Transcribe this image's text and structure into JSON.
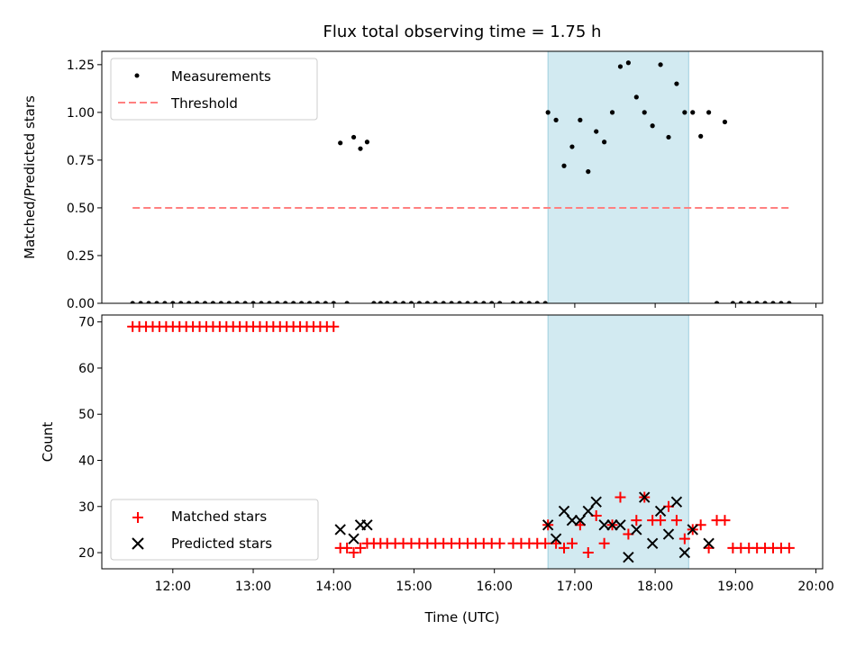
{
  "chart_data": {
    "type": "scatter",
    "title": "Flux total observing time = 1.75 h",
    "xlabel": "Time (UTC)",
    "x_tick_labels": [
      "12:00",
      "13:00",
      "14:00",
      "15:00",
      "16:00",
      "17:00",
      "18:00",
      "19:00",
      "20:00"
    ],
    "xlim": [
      "11:07",
      "20:05"
    ],
    "highlight_span": {
      "start": "16:40",
      "end": "18:25",
      "color": "#add8e6"
    },
    "panels": [
      {
        "ylabel": "Matched/Predicted stars",
        "ylim": [
          0,
          1.32
        ],
        "y_tick_labels": [
          "0.00",
          "0.25",
          "0.50",
          "0.75",
          "1.00",
          "1.25"
        ],
        "y_ticks": [
          0,
          0.25,
          0.5,
          0.75,
          1.0,
          1.25
        ],
        "legend": {
          "placement": "top-left",
          "entries": [
            "Measurements",
            "Threshold"
          ]
        },
        "series": [
          {
            "name": "Measurements",
            "marker": "dot",
            "color": "#000000",
            "x": [
              "11:30",
              "11:36",
              "11:42",
              "11:48",
              "11:54",
              "12:00",
              "12:06",
              "12:12",
              "12:18",
              "12:24",
              "12:30",
              "12:36",
              "12:42",
              "12:48",
              "12:54",
              "13:00",
              "13:06",
              "13:12",
              "13:18",
              "13:24",
              "13:30",
              "13:36",
              "13:42",
              "13:48",
              "13:54",
              "14:00",
              "14:05",
              "14:10",
              "14:15",
              "14:20",
              "14:25",
              "14:30",
              "14:35",
              "14:40",
              "14:46",
              "14:52",
              "14:58",
              "15:04",
              "15:10",
              "15:16",
              "15:22",
              "15:28",
              "15:34",
              "15:40",
              "15:46",
              "15:52",
              "15:58",
              "16:04",
              "16:14",
              "16:20",
              "16:26",
              "16:32",
              "16:38",
              "16:40",
              "16:46",
              "16:52",
              "16:58",
              "17:04",
              "17:10",
              "17:16",
              "17:22",
              "17:28",
              "17:34",
              "17:40",
              "17:46",
              "17:52",
              "17:58",
              "18:04",
              "18:10",
              "18:16",
              "18:22",
              "18:28",
              "18:34",
              "18:40",
              "18:46",
              "18:52",
              "18:58",
              "19:04",
              "19:10",
              "19:16",
              "19:22",
              "19:28",
              "19:34",
              "19:40"
            ],
            "y": [
              0,
              0,
              0,
              0,
              0,
              0,
              0,
              0,
              0,
              0,
              0,
              0,
              0,
              0,
              0,
              0,
              0,
              0,
              0,
              0,
              0,
              0,
              0,
              0,
              0,
              0,
              0.84,
              0,
              0.87,
              0.81,
              0.845,
              0,
              0,
              0,
              0,
              0,
              0,
              0,
              0,
              0,
              0,
              0,
              0,
              0,
              0,
              0,
              0,
              0,
              0,
              0,
              0,
              0,
              0,
              1.0,
              0.96,
              0.72,
              0.82,
              0.96,
              0.69,
              0.9,
              0.845,
              1.0,
              1.24,
              1.26,
              1.08,
              1.0,
              0.93,
              1.25,
              0.87,
              1.15,
              1.0,
              1.0,
              0.875,
              1.0,
              0,
              0.95,
              0,
              0,
              0,
              0,
              0,
              0,
              0,
              0
            ]
          },
          {
            "name": "Threshold",
            "marker": "dashed-line",
            "color": "#ff8080",
            "x": [
              "11:30",
              "19:40"
            ],
            "y": [
              0.5,
              0.5
            ]
          }
        ]
      },
      {
        "ylabel": "Count",
        "ylim": [
          16.5,
          71.5
        ],
        "y_tick_labels": [
          "20",
          "30",
          "40",
          "50",
          "60",
          "70"
        ],
        "y_ticks": [
          20,
          30,
          40,
          50,
          60,
          70
        ],
        "legend": {
          "placement": "bottom-left",
          "entries": [
            "Matched stars",
            "Predicted stars"
          ]
        },
        "series": [
          {
            "name": "Matched stars",
            "marker": "plus",
            "color": "#ff0000",
            "x": [
              "11:30",
              "11:35",
              "11:40",
              "11:45",
              "11:50",
              "11:55",
              "12:00",
              "12:05",
              "12:10",
              "12:15",
              "12:20",
              "12:25",
              "12:30",
              "12:35",
              "12:40",
              "12:45",
              "12:50",
              "12:55",
              "13:00",
              "13:05",
              "13:10",
              "13:15",
              "13:20",
              "13:25",
              "13:30",
              "13:35",
              "13:40",
              "13:45",
              "13:50",
              "13:55",
              "14:00",
              "14:05",
              "14:10",
              "14:15",
              "14:20",
              "14:25",
              "14:30",
              "14:35",
              "14:40",
              "14:46",
              "14:52",
              "14:58",
              "15:04",
              "15:10",
              "15:16",
              "15:22",
              "15:28",
              "15:34",
              "15:40",
              "15:46",
              "15:52",
              "15:58",
              "16:04",
              "16:14",
              "16:20",
              "16:26",
              "16:32",
              "16:38",
              "16:40",
              "16:46",
              "16:52",
              "16:58",
              "17:04",
              "17:10",
              "17:16",
              "17:22",
              "17:28",
              "17:34",
              "17:40",
              "17:46",
              "17:52",
              "17:58",
              "18:04",
              "18:10",
              "18:16",
              "18:22",
              "18:28",
              "18:34",
              "18:40",
              "18:46",
              "18:52",
              "18:58",
              "19:04",
              "19:10",
              "19:16",
              "19:22",
              "19:28",
              "19:34",
              "19:40"
            ],
            "y": [
              69,
              69,
              69,
              69,
              69,
              69,
              69,
              69,
              69,
              69,
              69,
              69,
              69,
              69,
              69,
              69,
              69,
              69,
              69,
              69,
              69,
              69,
              69,
              69,
              69,
              69,
              69,
              69,
              69,
              69,
              69,
              21,
              21,
              20,
              21,
              22,
              22,
              22,
              22,
              22,
              22,
              22,
              22,
              22,
              22,
              22,
              22,
              22,
              22,
              22,
              22,
              22,
              22,
              22,
              22,
              22,
              22,
              22,
              26,
              22,
              21,
              22,
              26,
              20,
              28,
              22,
              26,
              32,
              24,
              27,
              32,
              27,
              27,
              30,
              27,
              23,
              25,
              26,
              21,
              27,
              27,
              21,
              21,
              21,
              21,
              21,
              21,
              21,
              21
            ]
          },
          {
            "name": "Predicted stars",
            "marker": "x",
            "color": "#000000",
            "x": [
              "14:05",
              "14:15",
              "14:20",
              "14:25",
              "16:40",
              "16:46",
              "16:52",
              "16:58",
              "17:04",
              "17:10",
              "17:16",
              "17:22",
              "17:28",
              "17:34",
              "17:40",
              "17:46",
              "17:52",
              "17:58",
              "18:04",
              "18:10",
              "18:16",
              "18:22",
              "18:28",
              "18:40"
            ],
            "y": [
              25,
              23,
              26,
              26,
              26,
              23,
              29,
              27,
              27,
              29,
              31,
              26,
              26,
              26,
              19,
              25,
              32,
              22,
              29,
              24,
              31,
              20,
              25,
              22
            ]
          }
        ]
      }
    ]
  }
}
